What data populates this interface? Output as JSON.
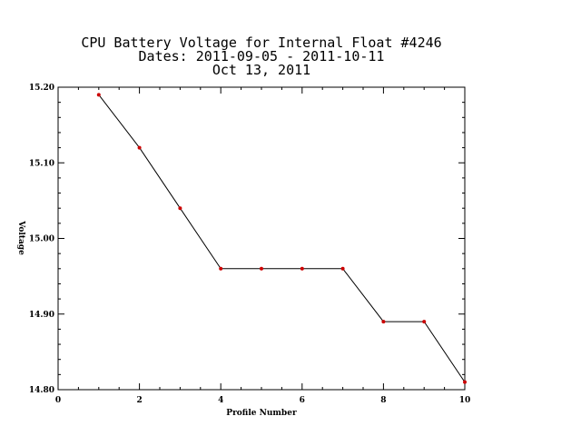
{
  "chart_data": {
    "type": "line",
    "title_lines": [
      "CPU Battery Voltage for Internal Float #4246",
      "Dates:  2011-09-05 -  2011-10-11",
      "Oct 13, 2011"
    ],
    "xlabel": "Profile Number",
    "ylabel": "Voltage",
    "xlim": [
      0,
      10
    ],
    "ylim": [
      14.8,
      15.2
    ],
    "x_ticks": [
      "0",
      "2",
      "4",
      "6",
      "8",
      "10"
    ],
    "y_ticks": [
      "14.80",
      "14.90",
      "15.00",
      "15.10",
      "15.20"
    ],
    "grid": false,
    "series": [
      {
        "x": [
          1,
          2,
          3,
          4,
          5,
          6,
          7,
          8,
          9,
          10
        ],
        "values": [
          15.19,
          15.12,
          15.04,
          14.96,
          14.96,
          14.96,
          14.96,
          14.89,
          14.89,
          14.81
        ]
      }
    ],
    "line_color": "#000000",
    "marker_color": "#cc0000"
  }
}
